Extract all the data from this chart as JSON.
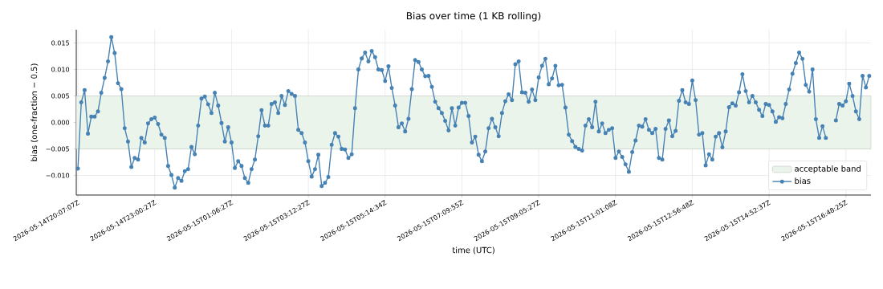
{
  "chart_data": {
    "type": "line",
    "title": "Bias over time (1 KB rolling)",
    "xlabel": "time (UTC)",
    "ylabel": "bias (one-fraction − 0.5)",
    "categories": [
      "2026-05-14T20:07:07Z",
      null,
      null,
      null,
      null,
      null,
      null,
      null,
      null,
      null,
      null,
      null,
      null,
      null,
      null,
      null,
      null,
      null,
      null,
      null,
      null,
      null,
      null,
      "2026-05-14T23:00:27Z",
      null,
      null,
      null,
      null,
      null,
      null,
      null,
      null,
      null,
      null,
      null,
      null,
      null,
      null,
      null,
      null,
      null,
      null,
      null,
      null,
      null,
      null,
      "2026-05-15T01:06:27Z",
      null,
      null,
      null,
      null,
      null,
      null,
      null,
      null,
      null,
      null,
      null,
      null,
      null,
      null,
      null,
      null,
      null,
      null,
      null,
      null,
      null,
      null,
      "2026-05-15T03:12:27Z",
      null,
      null,
      null,
      null,
      null,
      null,
      null,
      null,
      null,
      null,
      null,
      null,
      null,
      null,
      null,
      null,
      null,
      null,
      null,
      null,
      null,
      null,
      "2026-05-15T05:14:34Z",
      null,
      null,
      null,
      null,
      null,
      null,
      null,
      null,
      null,
      null,
      null,
      null,
      null,
      null,
      null,
      null,
      null,
      null,
      null,
      null,
      null,
      null,
      "2026-05-15T07:09:55Z",
      null,
      null,
      null,
      null,
      null,
      null,
      null,
      null,
      null,
      null,
      null,
      null,
      null,
      null,
      null,
      null,
      null,
      null,
      null,
      null,
      null,
      null,
      "2026-05-15T09:05:27Z",
      null,
      null,
      null,
      null,
      null,
      null,
      null,
      null,
      null,
      null,
      null,
      null,
      null,
      null,
      null,
      null,
      null,
      null,
      null,
      null,
      null,
      null,
      "2026-05-15T11:01:08Z",
      null,
      null,
      null,
      null,
      null,
      null,
      null,
      null,
      null,
      null,
      null,
      null,
      null,
      null,
      null,
      null,
      null,
      null,
      null,
      null,
      null,
      null,
      "2026-05-15T12:56:48Z",
      null,
      null,
      null,
      null,
      null,
      null,
      null,
      null,
      null,
      null,
      null,
      null,
      null,
      null,
      null,
      null,
      null,
      null,
      null,
      null,
      null,
      null,
      "2026-05-15T14:52:37Z",
      null,
      null,
      null,
      null,
      null,
      null,
      null,
      null,
      null,
      null,
      null,
      null,
      null,
      null,
      null,
      null,
      null,
      null,
      null,
      null,
      null,
      null,
      "2026-05-15T16:48:25Z",
      null,
      null,
      null,
      null,
      null,
      null,
      null
    ],
    "series": [
      {
        "name": "bias",
        "color": "#4682b4",
        "values": [
          -0.0087,
          0.0038,
          0.0061,
          -0.0021,
          0.0011,
          0.0011,
          0.0021,
          0.0056,
          0.0084,
          0.0115,
          0.0161,
          0.0131,
          0.0074,
          0.0063,
          -0.0011,
          -0.0036,
          -0.0084,
          -0.0067,
          -0.007,
          -0.0029,
          -0.0038,
          -0.0002,
          0.0006,
          0.0009,
          -0.0003,
          -0.0023,
          -0.0029,
          -0.0082,
          -0.0099,
          -0.0123,
          -0.0105,
          -0.011,
          -0.0092,
          -0.0088,
          -0.0046,
          -0.006,
          -0.0006,
          0.0045,
          0.0049,
          0.0034,
          0.0018,
          0.0056,
          0.0032,
          -0.0001,
          -0.0036,
          -0.0009,
          -0.0038,
          -0.0086,
          -0.0073,
          -0.0082,
          -0.0105,
          -0.0114,
          -0.0088,
          -0.007,
          -0.0026,
          0.0023,
          -0.0006,
          -0.0006,
          0.0035,
          0.0038,
          0.0018,
          0.005,
          0.0033,
          0.0059,
          0.0054,
          0.005,
          -0.0014,
          -0.002,
          -0.0038,
          -0.0073,
          -0.0102,
          -0.0088,
          -0.0061,
          -0.012,
          -0.0114,
          -0.0103,
          -0.0042,
          -0.002,
          -0.0027,
          -0.005,
          -0.0051,
          -0.0067,
          -0.006,
          0.0027,
          0.01,
          0.0121,
          0.0132,
          0.0115,
          0.0135,
          0.0123,
          0.01,
          0.0099,
          0.0078,
          0.0106,
          0.0065,
          0.0032,
          -0.0009,
          -0.0002,
          -0.0017,
          0.0007,
          0.0063,
          0.0118,
          0.0114,
          0.01,
          0.0087,
          0.0088,
          0.0067,
          0.0039,
          0.0027,
          0.0018,
          0.0003,
          -0.0015,
          0.0027,
          -0.0006,
          0.0028,
          0.0037,
          0.0037,
          0.0012,
          -0.0038,
          -0.0027,
          -0.0061,
          -0.0073,
          -0.0055,
          -0.0011,
          0.0007,
          -0.0009,
          -0.0026,
          0.0018,
          0.004,
          0.0053,
          0.0042,
          0.011,
          0.0115,
          0.0057,
          0.0056,
          0.0039,
          0.0062,
          0.0042,
          0.0085,
          0.0107,
          0.012,
          0.0072,
          0.0083,
          0.0107,
          0.007,
          0.0071,
          0.0028,
          -0.0023,
          -0.0035,
          -0.0046,
          -0.005,
          -0.0053,
          -0.0006,
          0.0006,
          -0.0009,
          0.0039,
          -0.0017,
          -0.0002,
          -0.002,
          -0.0014,
          -0.0011,
          -0.0067,
          -0.0055,
          -0.0065,
          -0.0079,
          -0.0093,
          -0.0056,
          -0.0034,
          -0.0006,
          -0.0008,
          0.0006,
          -0.0014,
          -0.002,
          -0.0012,
          -0.0067,
          -0.007,
          -0.0012,
          0.0004,
          -0.0026,
          -0.0016,
          0.0041,
          0.0061,
          0.0038,
          0.0035,
          0.0079,
          0.0042,
          -0.0023,
          -0.002,
          -0.0081,
          -0.006,
          -0.007,
          -0.0027,
          -0.002,
          -0.0047,
          -0.0017,
          0.0029,
          0.0036,
          0.0032,
          0.0057,
          0.0091,
          0.0059,
          0.0038,
          0.005,
          0.0038,
          0.0024,
          0.0012,
          0.0035,
          0.0033,
          0.0021,
          0.0001,
          0.001,
          0.0008,
          0.0035,
          0.0062,
          0.0092,
          0.0112,
          0.0132,
          0.012,
          0.0071,
          0.0058,
          0.01,
          0.0006,
          -0.0029,
          -0.0007,
          -0.0029,
          null,
          null,
          0.0004,
          0.0035,
          0.0032,
          0.004,
          0.0073,
          0.005,
          0.0021,
          0.0006,
          0.0088,
          0.0066,
          0.0088
        ]
      }
    ],
    "bands": [
      {
        "axis": "y",
        "from": -0.005,
        "to": 0.005,
        "label": "acceptable band",
        "color": "#ebf4eb"
      }
    ],
    "ylim": [
      -0.0137,
      0.0175
    ],
    "yticks": [
      {
        "value": -0.01,
        "label": "−0.010"
      },
      {
        "value": -0.005,
        "label": "−0.005"
      },
      {
        "value": 0,
        "label": "0.000"
      },
      {
        "value": 0.005,
        "label": "0.005"
      },
      {
        "value": 0.01,
        "label": "0.010"
      },
      {
        "value": 0.015,
        "label": "0.015"
      }
    ],
    "grid": true,
    "legend": "bottom right",
    "marker": "circle",
    "line_style": "solid"
  }
}
